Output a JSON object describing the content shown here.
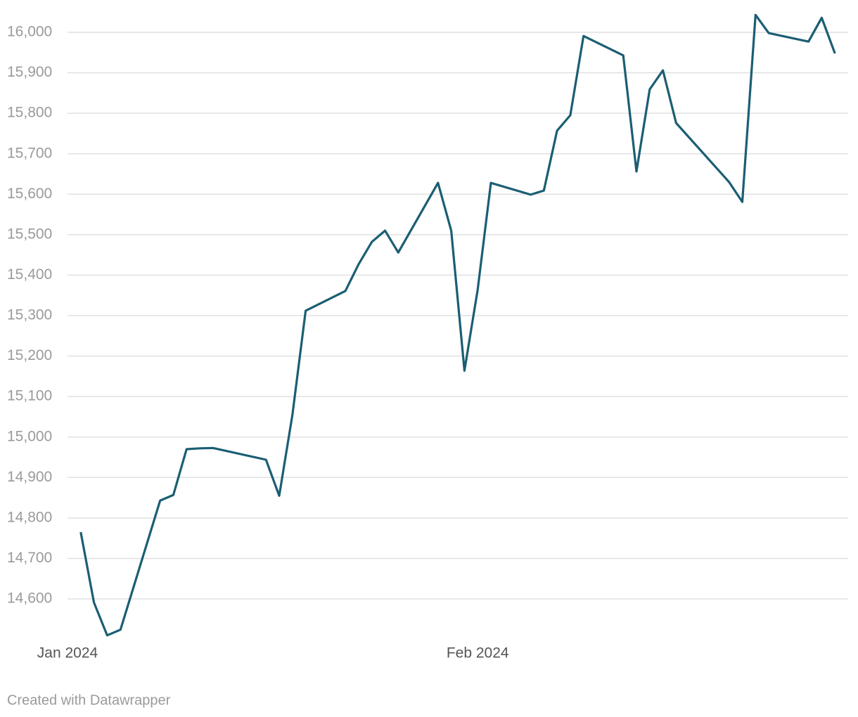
{
  "chart_data": {
    "type": "line",
    "x": [
      "2024-01-02",
      "2024-01-03",
      "2024-01-04",
      "2024-01-05",
      "2024-01-08",
      "2024-01-09",
      "2024-01-10",
      "2024-01-11",
      "2024-01-12",
      "2024-01-16",
      "2024-01-17",
      "2024-01-18",
      "2024-01-19",
      "2024-01-22",
      "2024-01-23",
      "2024-01-24",
      "2024-01-25",
      "2024-01-26",
      "2024-01-29",
      "2024-01-30",
      "2024-01-31",
      "2024-02-01",
      "2024-02-02",
      "2024-02-05",
      "2024-02-06",
      "2024-02-07",
      "2024-02-08",
      "2024-02-09",
      "2024-02-12",
      "2024-02-13",
      "2024-02-14",
      "2024-02-15",
      "2024-02-16",
      "2024-02-20",
      "2024-02-21",
      "2024-02-22",
      "2024-02-23",
      "2024-02-26",
      "2024-02-27",
      "2024-02-28"
    ],
    "values": [
      14765,
      14591,
      14510,
      14524,
      14843,
      14857,
      14970,
      14972,
      14973,
      14944,
      14855,
      15055,
      15312,
      15361,
      15427,
      15482,
      15510,
      15456,
      15628,
      15510,
      15164,
      15364,
      15628,
      15599,
      15609,
      15757,
      15795,
      15991,
      15943,
      15656,
      15859,
      15906,
      15776,
      15630,
      15581,
      16043,
      15998,
      15977,
      16036,
      15948
    ],
    "color": "#1b5e73",
    "xlim": [
      "2024-01-01",
      "2024-02-29"
    ],
    "xticks": [
      {
        "value": "2024-01-01",
        "label": "Jan 2024"
      },
      {
        "value": "2024-02-01",
        "label": "Feb 2024"
      }
    ],
    "ylim": [
      14500,
      16050
    ],
    "yticks": [
      {
        "value": 14600,
        "label": "14,600"
      },
      {
        "value": 14700,
        "label": "14,700"
      },
      {
        "value": 14800,
        "label": "14,800"
      },
      {
        "value": 14900,
        "label": "14,900"
      },
      {
        "value": 15000,
        "label": "15,000"
      },
      {
        "value": 15100,
        "label": "15,100"
      },
      {
        "value": 15200,
        "label": "15,200"
      },
      {
        "value": 15300,
        "label": "15,300"
      },
      {
        "value": 15400,
        "label": "15,400"
      },
      {
        "value": 15500,
        "label": "15,500"
      },
      {
        "value": 15600,
        "label": "15,600"
      },
      {
        "value": 15700,
        "label": "15,700"
      },
      {
        "value": 15800,
        "label": "15,800"
      },
      {
        "value": 15900,
        "label": "15,900"
      },
      {
        "value": 16000,
        "label": "16,000"
      }
    ],
    "grid": true,
    "credit": "Created with Datawrapper"
  }
}
